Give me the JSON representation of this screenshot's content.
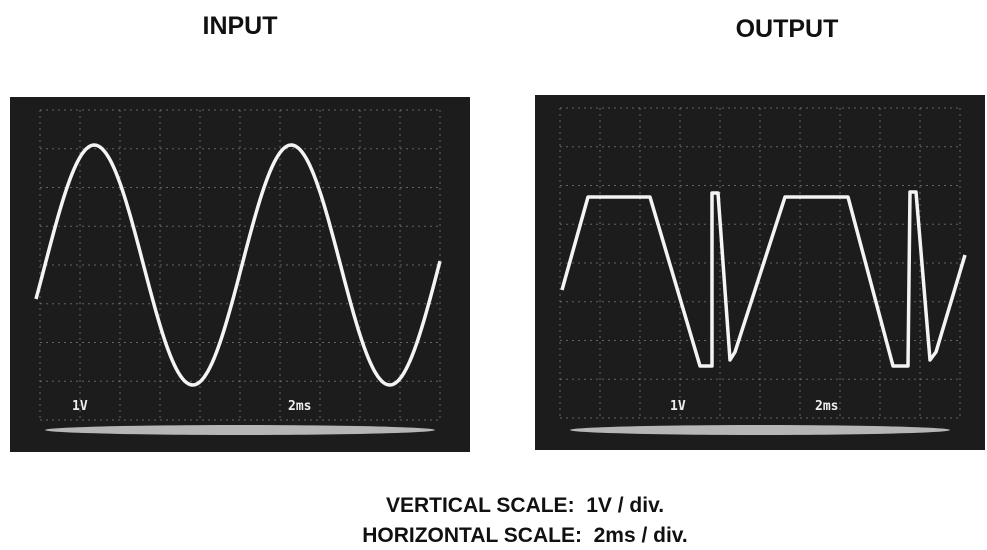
{
  "input": {
    "title": "INPUT",
    "volts_label": "1V",
    "time_label": "2ms"
  },
  "output": {
    "title": "OUTPUT",
    "volts_label": "1V",
    "time_label": "2ms"
  },
  "caption": {
    "vertical": "VERTICAL SCALE:  1V / div.",
    "horizontal": "HORIZONTAL SCALE:  2ms / div."
  }
}
